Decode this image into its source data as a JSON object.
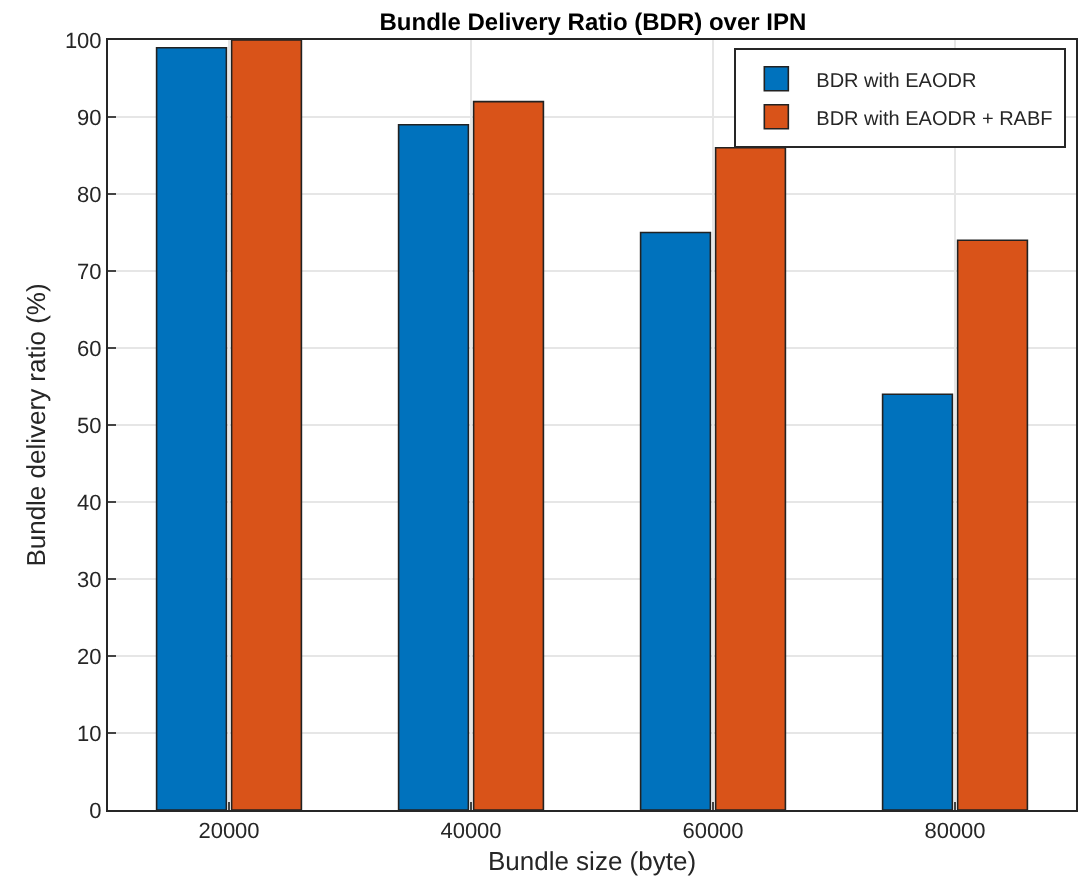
{
  "chart_data": {
    "type": "bar",
    "title": "Bundle Delivery Ratio (BDR) over IPN",
    "xlabel": "Bundle size (byte)",
    "ylabel": "Bundle delivery ratio (%)",
    "categories": [
      "20000",
      "40000",
      "60000",
      "80000"
    ],
    "series": [
      {
        "name": "BDR with EAODR",
        "color": "#0072bd",
        "values": [
          99,
          89,
          75,
          54
        ]
      },
      {
        "name": "BDR with EAODR + RABF",
        "color": "#d95319",
        "values": [
          100,
          92,
          86,
          74
        ]
      }
    ],
    "ylim": [
      0,
      100
    ],
    "yticks": [
      0,
      10,
      20,
      30,
      40,
      50,
      60,
      70,
      80,
      90,
      100
    ],
    "grid": true,
    "legend": "top right"
  }
}
